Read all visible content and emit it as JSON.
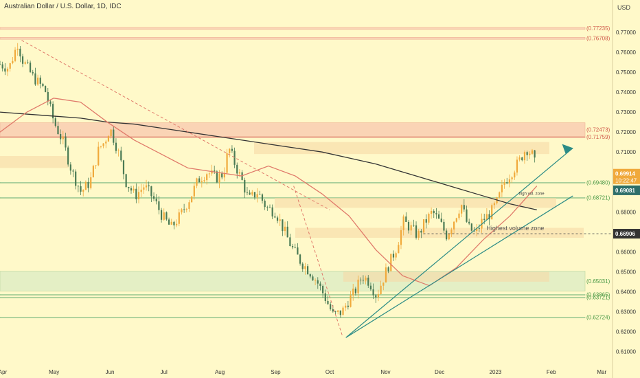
{
  "header": {
    "title": "Australian Dollar / U.S. Dollar, 1D, IDC",
    "currency": "USD"
  },
  "colors": {
    "background": "#fff9c9",
    "up": "#f0a93b",
    "down": "#4a7a54",
    "resistance_zone": "#f7b6a6",
    "demand_zone": "#f6d9a6",
    "support_zone": "#cfe8c3",
    "ma_200": "#333333",
    "ma_fast": "#e07a6a",
    "trendline": "#2c8c86",
    "price_badge": "#f0a93b",
    "prev_close_badge": "#2d6e69"
  },
  "chart_data": {
    "type": "candlestick",
    "title": "Australian Dollar / U.S. Dollar, 1D, IDC",
    "y_axis": {
      "range": [
        0.605,
        0.78
      ],
      "ticks": [
        "0.77000",
        "0.76000",
        "0.75000",
        "0.74000",
        "0.73000",
        "0.72000",
        "0.71000",
        "0.70000",
        "0.69000",
        "0.68000",
        "0.67000",
        "0.66000",
        "0.65000",
        "0.64000",
        "0.63000",
        "0.62000",
        "0.61000"
      ],
      "tick_values": [
        0.77,
        0.76,
        0.75,
        0.74,
        0.73,
        0.72,
        0.71,
        0.7,
        0.69,
        0.68,
        0.67,
        0.66,
        0.65,
        0.64,
        0.63,
        0.62,
        0.61
      ]
    },
    "x_axis": {
      "ticks": [
        "Apr",
        "May",
        "Jun",
        "Jul",
        "Aug",
        "Sep",
        "Oct",
        "Nov",
        "Dec",
        "2023",
        "Feb",
        "Mar"
      ],
      "tick_days": [
        0,
        30,
        61,
        91,
        122,
        153,
        183,
        214,
        244,
        275,
        306,
        334
      ]
    },
    "ohlc_anchor": {
      "days": [
        0,
        5,
        10,
        12,
        18,
        25,
        30,
        35,
        40,
        45,
        50,
        55,
        58,
        61,
        65,
        70,
        75,
        80,
        85,
        90,
        95,
        100,
        106,
        110,
        115,
        120,
        124,
        127,
        130,
        135,
        138,
        143,
        148,
        153,
        158,
        162,
        167,
        172,
        176,
        180,
        185,
        190,
        193,
        197,
        201,
        205,
        209,
        212,
        216,
        220,
        224,
        228,
        232,
        236,
        240,
        244,
        248,
        252,
        256,
        260,
        264,
        268,
        272,
        276,
        280,
        284,
        288,
        292,
        296,
        298
      ],
      "close": [
        0.754,
        0.752,
        0.765,
        0.757,
        0.748,
        0.741,
        0.725,
        0.715,
        0.7,
        0.69,
        0.695,
        0.712,
        0.715,
        0.722,
        0.712,
        0.695,
        0.688,
        0.693,
        0.687,
        0.678,
        0.672,
        0.678,
        0.688,
        0.696,
        0.7,
        0.697,
        0.699,
        0.712,
        0.705,
        0.694,
        0.686,
        0.69,
        0.682,
        0.68,
        0.67,
        0.662,
        0.655,
        0.65,
        0.645,
        0.638,
        0.628,
        0.63,
        0.635,
        0.64,
        0.648,
        0.645,
        0.638,
        0.645,
        0.654,
        0.662,
        0.675,
        0.672,
        0.668,
        0.675,
        0.68,
        0.675,
        0.668,
        0.676,
        0.684,
        0.672,
        0.669,
        0.676,
        0.679,
        0.685,
        0.695,
        0.7,
        0.705,
        0.712,
        0.708,
        0.699
      ]
    },
    "zones": [
      {
        "label": "(0.77235)",
        "from": 0.7715,
        "to": 0.7725,
        "kind": "resistance"
      },
      {
        "label": "(0.76708)",
        "from": 0.7665,
        "to": 0.7675,
        "kind": "resistance"
      },
      {
        "label": "(0.72473)",
        "from": 0.7178,
        "to": 0.7247,
        "kind": "resistance"
      },
      {
        "label": "(0.71759)",
        "from": 0.7176,
        "to": 0.7176,
        "kind": "resistance"
      },
      {
        "label": "(0.69480)",
        "from": 0.6948,
        "to": 0.6948,
        "kind": "support"
      },
      {
        "label": "(0.68721)",
        "from": 0.6872,
        "to": 0.6872,
        "kind": "support"
      },
      {
        "label": "(0.65031)",
        "from": 0.6403,
        "to": 0.6503,
        "kind": "support"
      },
      {
        "label": "(0.63865)",
        "from": 0.6386,
        "to": 0.6386,
        "kind": "support"
      },
      {
        "label": "(0.63721)",
        "from": 0.6372,
        "to": 0.6372,
        "kind": "support"
      },
      {
        "label": "(0.62724)",
        "from": 0.6272,
        "to": 0.6272,
        "kind": "support"
      }
    ],
    "annotations": {
      "high_vol_zone": "high vol. zone",
      "highest_volume_zone": "Highest volume zone"
    },
    "price_labels": {
      "current": "0.69914",
      "countdown": "10:22:47",
      "prev_close": "0.69081",
      "highest_volume_level": "0.66906"
    },
    "price_values": {
      "current": 0.69914,
      "prev_close": 0.69081,
      "highest_volume_level": 0.66906
    },
    "ma_200": [
      0.73,
      0.729,
      0.728,
      0.727,
      0.725,
      0.724,
      0.722,
      0.72,
      0.718,
      0.716,
      0.714,
      0.712,
      0.71,
      0.707,
      0.704,
      0.7,
      0.696,
      0.692,
      0.688,
      0.684,
      0.681
    ],
    "ma_fast": [
      0.72,
      0.73,
      0.737,
      0.735,
      0.725,
      0.716,
      0.709,
      0.702,
      0.7,
      0.698,
      0.703,
      0.698,
      0.689,
      0.678,
      0.661,
      0.648,
      0.643,
      0.652,
      0.666,
      0.678,
      0.693
    ]
  }
}
